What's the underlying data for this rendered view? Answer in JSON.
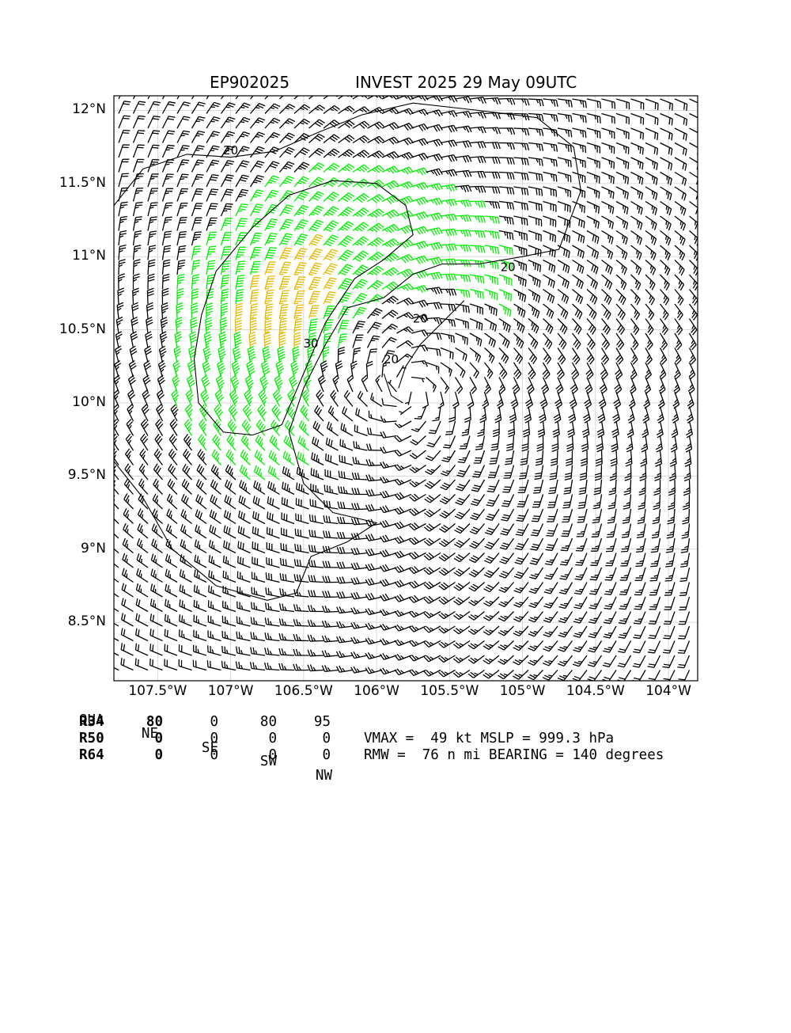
{
  "title": {
    "storm_id": "EP902025",
    "headline": "INVEST 2025 29 May 09UTC"
  },
  "map": {
    "lon_range": [
      -107.8,
      -103.8
    ],
    "lat_range": [
      8.1,
      12.1
    ],
    "x_ticks": [
      {
        "lon": -107.5,
        "label": "107.5°W"
      },
      {
        "lon": -107.0,
        "label": "107°W"
      },
      {
        "lon": -106.5,
        "label": "106.5°W"
      },
      {
        "lon": -106.0,
        "label": "106°W"
      },
      {
        "lon": -105.5,
        "label": "105.5°W"
      },
      {
        "lon": -105.0,
        "label": "105°W"
      },
      {
        "lon": -104.5,
        "label": "104.5°W"
      },
      {
        "lon": -104.0,
        "label": "104°W"
      }
    ],
    "y_ticks": [
      {
        "lat": 12.0,
        "label": "12°N"
      },
      {
        "lat": 11.5,
        "label": "11.5°N"
      },
      {
        "lat": 11.0,
        "label": "11°N"
      },
      {
        "lat": 10.5,
        "label": "10.5°N"
      },
      {
        "lat": 10.0,
        "label": "10°N"
      },
      {
        "lat": 9.5,
        "label": "9.5°N"
      },
      {
        "lat": 9.0,
        "label": "9°N"
      },
      {
        "lat": 8.5,
        "label": "8.5°N"
      }
    ],
    "grid": true,
    "center": {
      "lon": -105.8,
      "lat": 10.1
    },
    "barb_colors": {
      "below_34kt": "#000000",
      "34_to_49kt": "#00ee00",
      "50kt_plus": "#e8b800"
    },
    "contour_labels": [
      {
        "text": "20",
        "lon": -107.0,
        "lat": 11.7
      },
      {
        "text": "20",
        "lon": -105.1,
        "lat": 10.9
      },
      {
        "text": "20",
        "lon": -105.7,
        "lat": 10.55
      },
      {
        "text": "20",
        "lon": -105.9,
        "lat": 10.27
      },
      {
        "text": "30",
        "lon": -106.45,
        "lat": 10.38
      }
    ]
  },
  "radii_table": {
    "header": [
      "QUA",
      "NE",
      "SE",
      "SW",
      "NW"
    ],
    "rows": [
      {
        "label": "R34",
        "values": [
          "80",
          "0",
          "80",
          "95"
        ]
      },
      {
        "label": "R50",
        "values": [
          "0",
          "0",
          "0",
          "0"
        ]
      },
      {
        "label": "R64",
        "values": [
          "0",
          "0",
          "0",
          "0"
        ]
      }
    ]
  },
  "summary": {
    "line1": "VMAX =  49 kt MSLP = 999.3 hPa",
    "line2": "RMW =  76 n mi BEARING = 140 degrees"
  }
}
